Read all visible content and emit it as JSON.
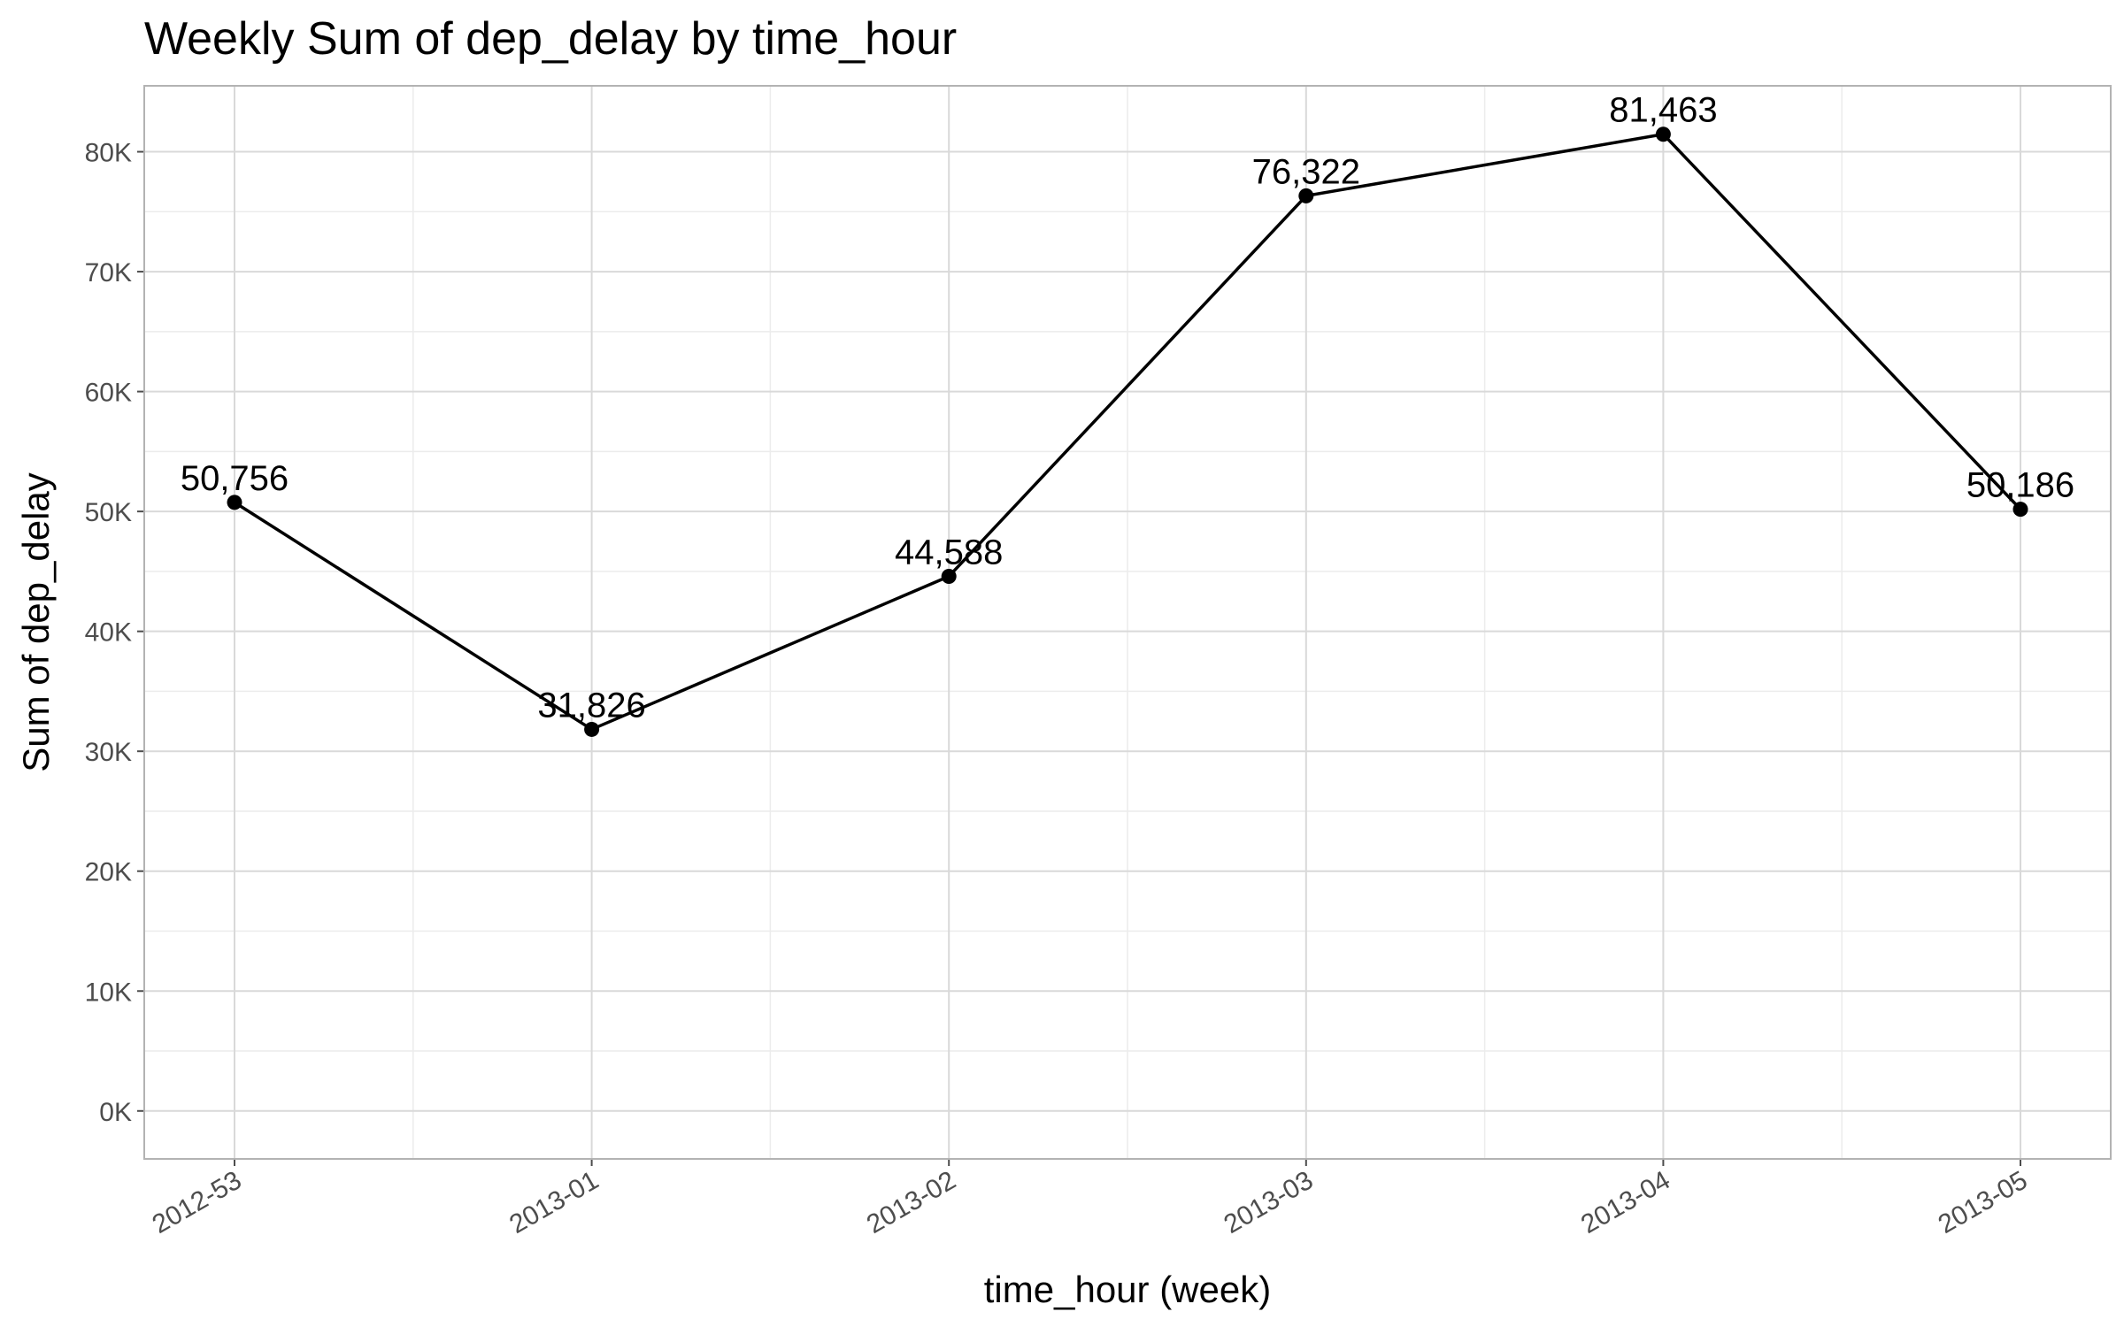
{
  "chart_data": {
    "type": "line",
    "title": "Weekly Sum of dep_delay by time_hour",
    "xlabel": "time_hour (week)",
    "ylabel": "Sum of dep_delay",
    "categories": [
      "2012-53",
      "2013-01",
      "2013-02",
      "2013-03",
      "2013-04",
      "2013-05"
    ],
    "series": [
      {
        "values": [
          50756,
          31826,
          44588,
          76322,
          81463,
          50186
        ]
      }
    ],
    "data_labels": [
      "50,756",
      "31,826",
      "44,588",
      "76,322",
      "81,463",
      "50,186"
    ],
    "yticks": [
      0,
      10000,
      20000,
      30000,
      40000,
      50000,
      60000,
      70000,
      80000
    ],
    "ytick_labels": [
      "0K",
      "10K",
      "20K",
      "30K",
      "40K",
      "50K",
      "60K",
      "70K",
      "80K"
    ],
    "ylim": [
      -4000,
      85500
    ],
    "grid": true,
    "legend": "none",
    "colors": {
      "line": "#000000",
      "grid_major": "#d9d9d9",
      "grid_minor": "#ececec",
      "panel_border": "#b3b3b3"
    }
  }
}
